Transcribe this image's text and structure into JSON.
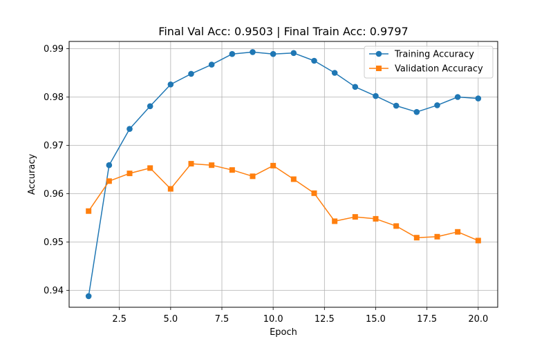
{
  "chart_data": {
    "type": "line",
    "title": "Final Val Acc: 0.9503 | Final Train Acc: 0.9797",
    "xlabel": "Epoch",
    "ylabel": "Accuracy",
    "xlim": [
      0.05,
      20.95
    ],
    "ylim": [
      0.9365,
      0.9915
    ],
    "xticks": [
      2.5,
      5.0,
      7.5,
      10.0,
      12.5,
      15.0,
      17.5,
      20.0
    ],
    "xtick_labels": [
      "2.5",
      "5.0",
      "7.5",
      "10.0",
      "12.5",
      "15.0",
      "17.5",
      "20.0"
    ],
    "yticks": [
      0.94,
      0.95,
      0.96,
      0.97,
      0.98,
      0.99
    ],
    "ytick_labels": [
      "0.94",
      "0.95",
      "0.96",
      "0.97",
      "0.98",
      "0.99"
    ],
    "grid": true,
    "legend_position": "top-right",
    "x": [
      1,
      2,
      3,
      4,
      5,
      6,
      7,
      8,
      9,
      10,
      11,
      12,
      13,
      14,
      15,
      16,
      17,
      18,
      19,
      20
    ],
    "series": [
      {
        "name": "Training Accuracy",
        "color": "#1f77b4",
        "marker": "circle",
        "values": [
          0.9388,
          0.9659,
          0.9734,
          0.9781,
          0.9826,
          0.9848,
          0.9867,
          0.9889,
          0.9893,
          0.9889,
          0.9891,
          0.9875,
          0.985,
          0.9821,
          0.9802,
          0.9782,
          0.9769,
          0.9783,
          0.98,
          0.9797
        ]
      },
      {
        "name": "Validation Accuracy",
        "color": "#ff7f0e",
        "marker": "square",
        "values": [
          0.9564,
          0.9626,
          0.9642,
          0.9653,
          0.961,
          0.9662,
          0.9659,
          0.9649,
          0.9636,
          0.9658,
          0.963,
          0.9601,
          0.9543,
          0.9552,
          0.9548,
          0.9533,
          0.9509,
          0.9511,
          0.9521,
          0.9503
        ]
      }
    ]
  }
}
